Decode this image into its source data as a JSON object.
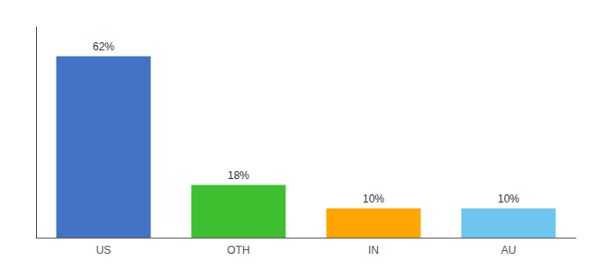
{
  "chart_data": {
    "type": "bar",
    "categories": [
      "US",
      "OTH",
      "IN",
      "AU"
    ],
    "values": [
      62,
      18,
      10,
      10
    ],
    "value_labels": [
      "62%",
      "18%",
      "10%",
      "10%"
    ],
    "colors": [
      "#4472C4",
      "#3DBF2F",
      "#FFA500",
      "#6EC6F0"
    ],
    "ylim": [
      0,
      72
    ],
    "grid": false,
    "data_labels": true,
    "tick_labels": "x"
  }
}
